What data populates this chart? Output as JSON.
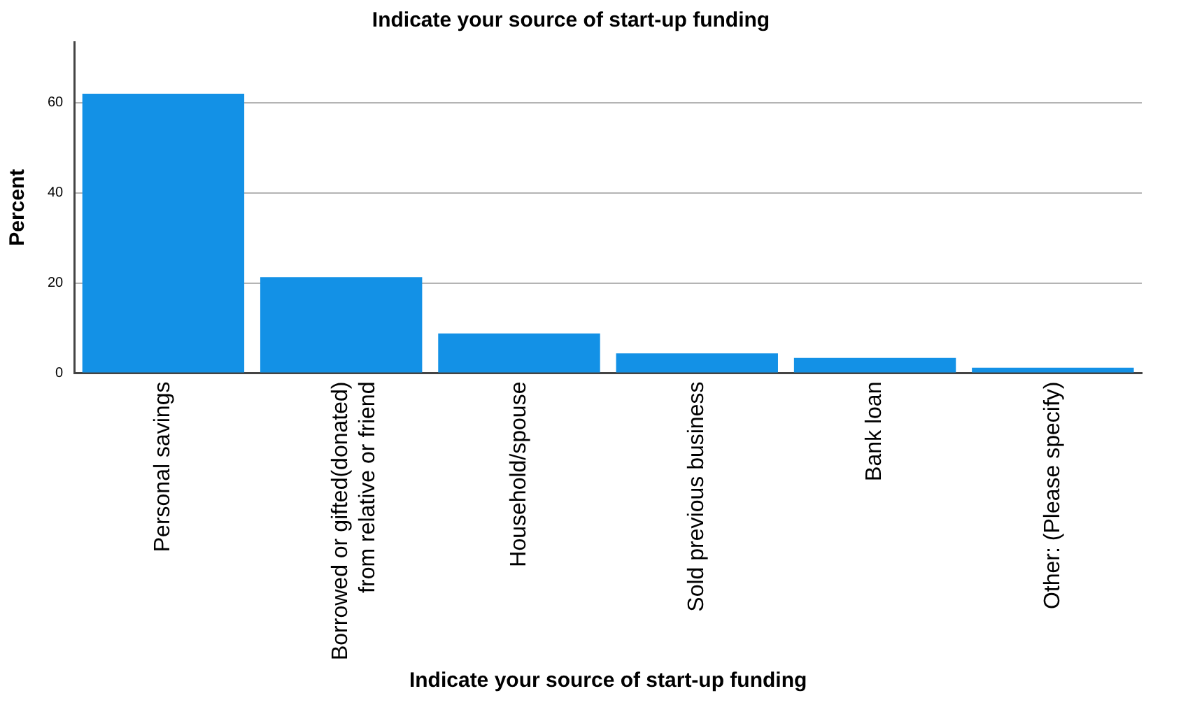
{
  "chart_data": {
    "type": "bar",
    "title": "Indicate your source of start-up funding",
    "xlabel": "Indicate your source of start-up funding",
    "ylabel": "Percent",
    "categories": [
      "Personal savings",
      "Borrowed or gifted(donated)\nfrom relative or friend",
      "Household/spouse",
      "Sold previous business",
      "Bank loan",
      "Other: (Please specify)"
    ],
    "values": [
      62.0,
      21.3,
      8.8,
      4.4,
      3.4,
      1.2
    ],
    "color": "#1391e6",
    "ylim": [
      0,
      73.5
    ],
    "yticks": [
      0,
      20,
      40,
      60
    ],
    "grid": "y",
    "legend": false
  }
}
